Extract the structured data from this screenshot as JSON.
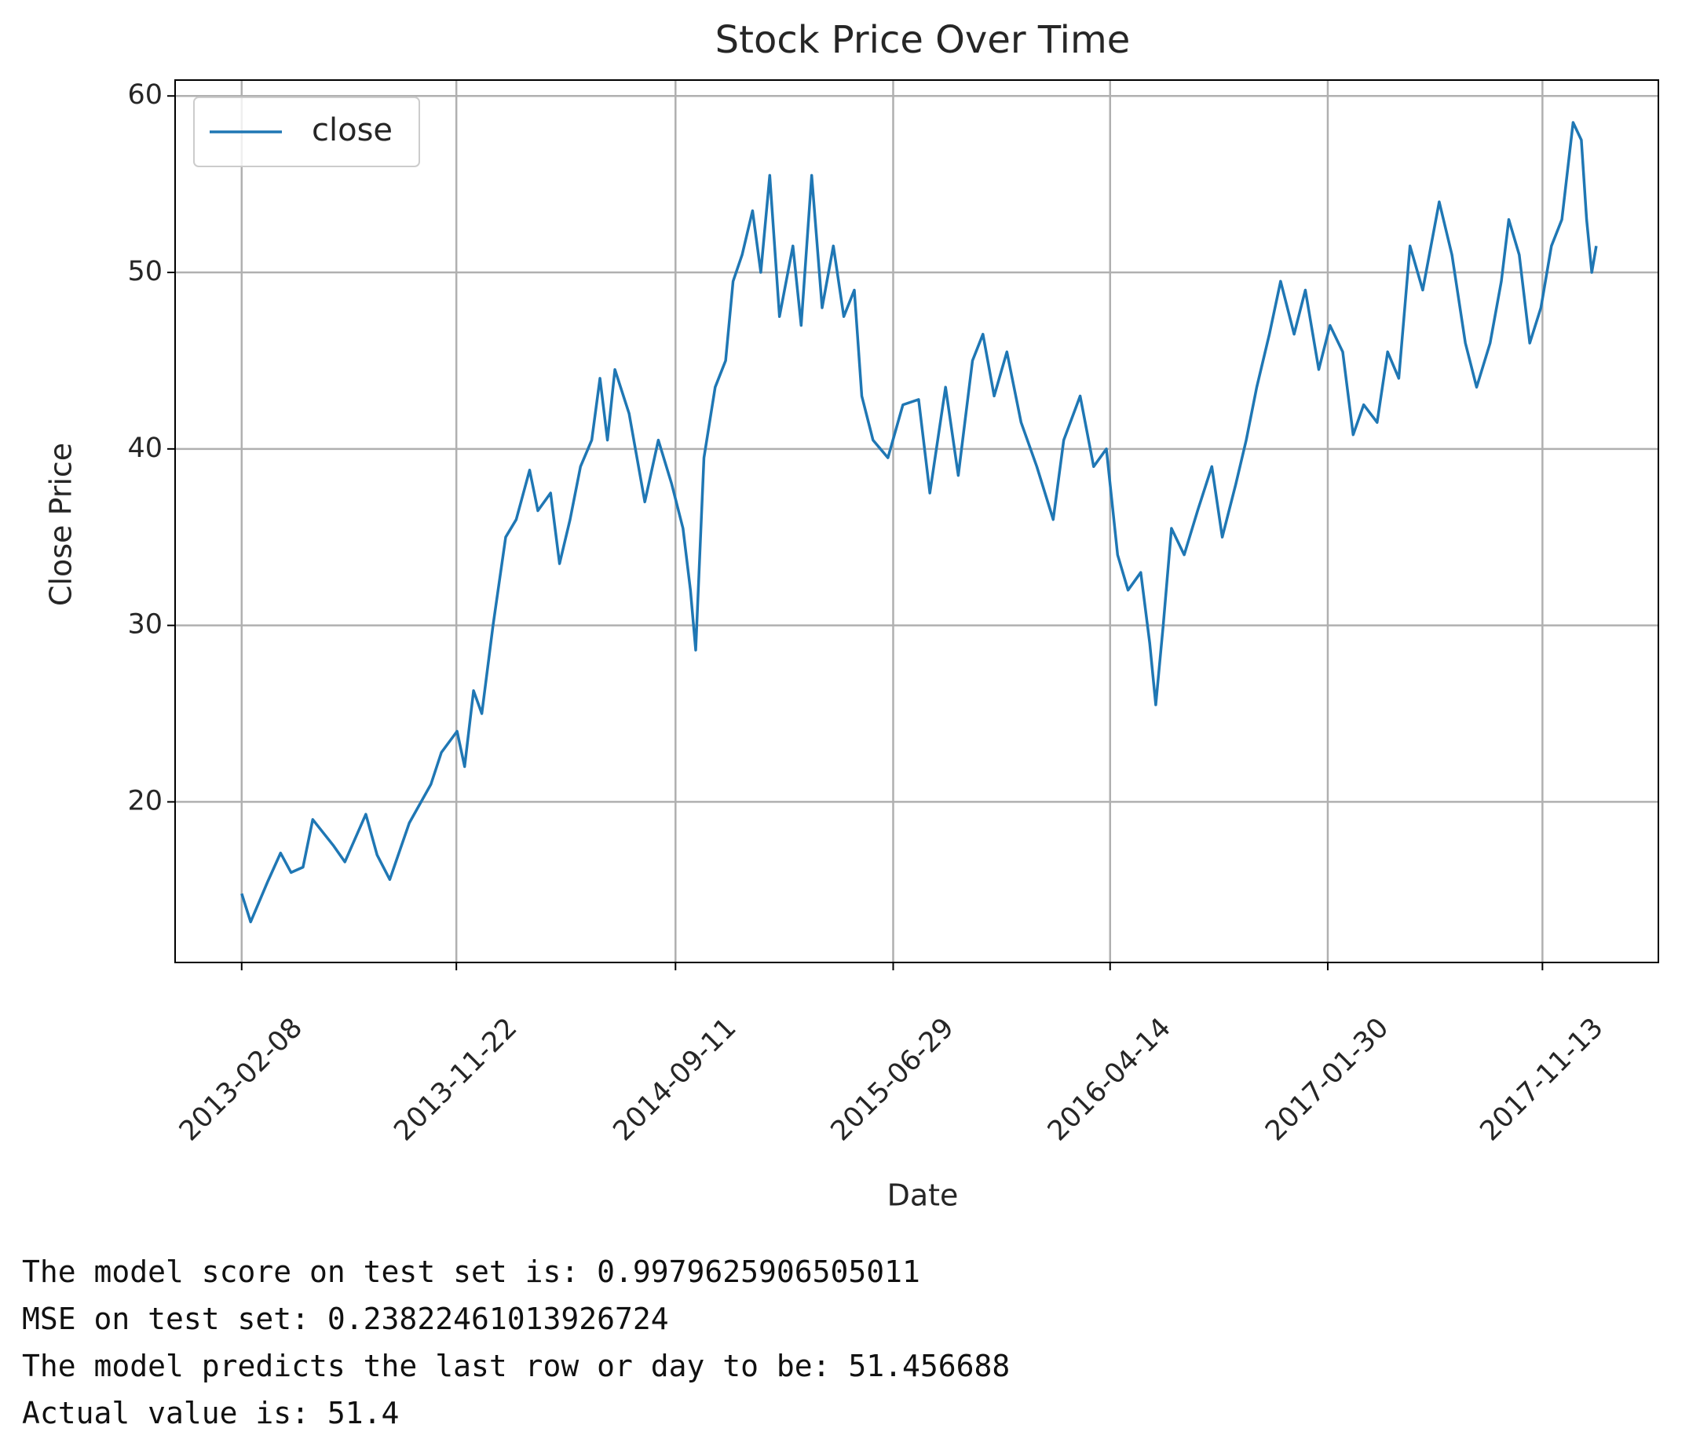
{
  "chart_data": {
    "type": "line",
    "title": "Stock Price Over Time",
    "x_label": "Date",
    "y_label": "Close Price",
    "x": [
      "2013-02-08",
      "2013-02-20",
      "2013-03-15",
      "2013-04-01",
      "2013-04-15",
      "2013-05-01",
      "2013-05-14",
      "2013-06-11",
      "2013-06-26",
      "2013-07-24",
      "2013-08-08",
      "2013-08-25",
      "2013-09-20",
      "2013-10-19",
      "2013-11-02",
      "2013-11-23",
      "2013-12-03",
      "2013-12-15",
      "2013-12-26",
      "2014-01-10",
      "2014-01-27",
      "2014-02-10",
      "2014-02-28",
      "2014-03-11",
      "2014-03-28",
      "2014-04-09",
      "2014-04-23",
      "2014-05-07",
      "2014-05-22",
      "2014-06-02",
      "2014-06-12",
      "2014-06-22",
      "2014-07-11",
      "2014-08-01",
      "2014-08-19",
      "2014-09-06",
      "2014-09-21",
      "2014-10-01",
      "2014-10-08",
      "2014-10-19",
      "2014-11-03",
      "2014-11-17",
      "2014-11-27",
      "2014-12-09",
      "2014-12-23",
      "2015-01-03",
      "2015-01-15",
      "2015-01-28",
      "2015-02-15",
      "2015-02-26",
      "2015-03-12",
      "2015-03-26",
      "2015-04-10",
      "2015-04-24",
      "2015-05-08",
      "2015-05-18",
      "2015-06-02",
      "2015-06-22",
      "2015-07-12",
      "2015-08-02",
      "2015-08-17",
      "2015-09-07",
      "2015-09-24",
      "2015-10-13",
      "2015-10-27",
      "2015-11-11",
      "2015-11-28",
      "2015-12-17",
      "2016-01-07",
      "2016-01-29",
      "2016-02-12",
      "2016-03-05",
      "2016-03-23",
      "2016-04-09",
      "2016-04-24",
      "2016-05-08",
      "2016-05-25",
      "2016-06-06",
      "2016-06-14",
      "2016-06-24",
      "2016-07-05",
      "2016-07-22",
      "2016-08-09",
      "2016-08-28",
      "2016-09-11",
      "2016-09-29",
      "2016-10-13",
      "2016-10-27",
      "2016-11-13",
      "2016-11-28",
      "2016-12-16",
      "2016-12-31",
      "2017-01-18",
      "2017-02-02",
      "2017-02-19",
      "2017-03-05",
      "2017-03-19",
      "2017-04-06",
      "2017-04-20",
      "2017-05-05",
      "2017-05-20",
      "2017-06-06",
      "2017-06-28",
      "2017-07-15",
      "2017-08-02",
      "2017-08-17",
      "2017-09-04",
      "2017-09-19",
      "2017-09-29",
      "2017-10-13",
      "2017-10-27",
      "2017-11-11",
      "2017-11-25",
      "2017-12-09",
      "2017-12-24",
      "2018-01-04",
      "2018-01-11",
      "2018-01-18",
      "2018-01-24"
    ],
    "series": [
      {
        "name": "close",
        "color": "#1f77b4",
        "values": [
          14.8,
          13.2,
          15.5,
          17.1,
          16.0,
          16.3,
          19.0,
          17.5,
          16.6,
          19.3,
          17.0,
          15.6,
          18.8,
          21.0,
          22.8,
          24.0,
          22.0,
          26.3,
          25.0,
          30.0,
          35.0,
          36.0,
          38.8,
          36.5,
          37.5,
          33.5,
          36.0,
          39.0,
          40.5,
          44.0,
          40.5,
          44.5,
          42.0,
          37.0,
          40.5,
          38.0,
          35.5,
          32.0,
          28.6,
          39.5,
          43.5,
          45.0,
          49.5,
          51.0,
          53.5,
          50.0,
          55.5,
          47.5,
          51.5,
          47.0,
          55.5,
          48.0,
          51.5,
          47.5,
          49.0,
          43.0,
          40.5,
          39.5,
          42.5,
          42.8,
          37.5,
          43.5,
          38.5,
          45.0,
          46.5,
          43.0,
          45.5,
          41.5,
          39.0,
          36.0,
          40.5,
          43.0,
          39.0,
          40.0,
          34.0,
          32.0,
          33.0,
          29.0,
          25.5,
          30.0,
          35.5,
          34.0,
          36.5,
          39.0,
          35.0,
          38.0,
          40.5,
          43.5,
          46.5,
          49.5,
          46.5,
          49.0,
          44.5,
          47.0,
          45.5,
          40.8,
          42.5,
          41.5,
          45.5,
          44.0,
          51.5,
          49.0,
          54.0,
          51.0,
          46.0,
          43.5,
          46.0,
          49.5,
          53.0,
          51.0,
          46.0,
          48.0,
          51.5,
          53.0,
          58.5,
          57.5,
          53.0,
          50.0,
          51.5
        ]
      }
    ],
    "xlim": [
      "2012-11-11",
      "2018-04-17"
    ],
    "xticks": [
      "2013-02-08",
      "2013-11-22",
      "2014-09-11",
      "2015-06-29",
      "2016-04-14",
      "2017-01-30",
      "2017-11-13"
    ],
    "ylim": [
      10.9,
      60.9
    ],
    "yticks": [
      20,
      30,
      40,
      50,
      60
    ],
    "grid": true,
    "legend": "upper left"
  },
  "console": [
    "The model score on test set is: 0.9979625906505011",
    "MSE on test set: 0.23822461013926724",
    "The model predicts the last row or day to be: 51.456688",
    "Actual value is: 51.4"
  ]
}
